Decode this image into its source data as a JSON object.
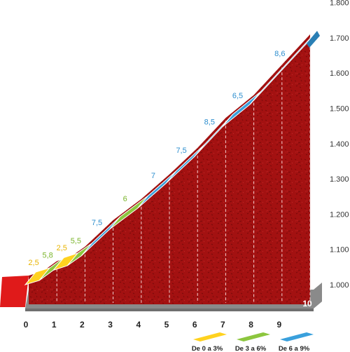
{
  "chart_data": {
    "type": "area",
    "description": "",
    "x_ticks": [
      "0",
      "1",
      "2",
      "3",
      "4",
      "5",
      "6",
      "7",
      "8",
      "9",
      "10"
    ],
    "y_ticks": [
      "1.000",
      "1.100",
      "1.200",
      "1.300",
      "1.400",
      "1.500",
      "1.600",
      "1.700",
      "1.800"
    ],
    "ylim": [
      1000,
      1800
    ],
    "xlim": [
      0,
      10
    ],
    "segments": [
      {
        "from": 0.0,
        "to": 0.5,
        "gradient": "2,5",
        "class": 0
      },
      {
        "from": 0.5,
        "to": 1.0,
        "gradient": "5,8",
        "class": 1
      },
      {
        "from": 1.0,
        "to": 1.5,
        "gradient": "2,5",
        "class": 0
      },
      {
        "from": 1.5,
        "to": 2.0,
        "gradient": "5,5",
        "class": 1
      },
      {
        "from": 2.0,
        "to": 3.0,
        "gradient": "7,5",
        "class": 2
      },
      {
        "from": 3.0,
        "to": 4.0,
        "gradient": "6",
        "class": 1
      },
      {
        "from": 4.0,
        "to": 5.0,
        "gradient": "7",
        "class": 2
      },
      {
        "from": 5.0,
        "to": 6.0,
        "gradient": "7,5",
        "class": 2
      },
      {
        "from": 6.0,
        "to": 7.0,
        "gradient": "8,5",
        "class": 2
      },
      {
        "from": 7.0,
        "to": 8.0,
        "gradient": "6,5",
        "class": 2
      },
      {
        "from": 8.0,
        "to": 10.0,
        "gradient": "8,6",
        "class": 2
      }
    ],
    "profile_elevations": [
      1000,
      1012,
      1041,
      1054,
      1082,
      1157,
      1217,
      1287,
      1362,
      1447,
      1512,
      1684
    ],
    "profile_km": [
      0,
      0.5,
      1.0,
      1.5,
      2.0,
      3.0,
      4.0,
      5.0,
      6.0,
      7.0,
      8.0,
      10.0
    ],
    "legend": [
      {
        "label": "De 0 a 3%",
        "color": "#ffd21f"
      },
      {
        "label": "De 3 a 6%",
        "color": "#8cc63e"
      },
      {
        "label": "De 6 a 9%",
        "color": "#3aa0dc"
      }
    ],
    "class_colors": [
      "#ffd21f",
      "#8cc63e",
      "#3aa0dc"
    ],
    "label_colors": [
      "#e8b400",
      "#7bb52c",
      "#2e8fcf"
    ],
    "fill_color": "#a31111",
    "base_color": "#8a8a8a"
  }
}
